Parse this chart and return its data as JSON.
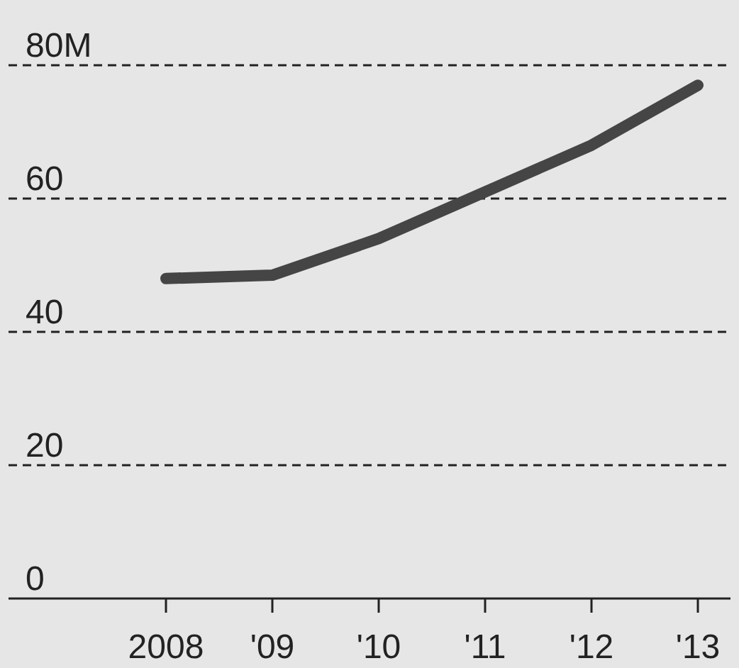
{
  "chart_data": {
    "type": "line",
    "categories": [
      "2008",
      "'09",
      "'10",
      "'11",
      "'12",
      "'13"
    ],
    "series": [
      {
        "color": "#454545",
        "values": [
          48,
          48.5,
          54,
          61,
          68,
          77
        ]
      }
    ],
    "ylim": [
      0,
      80
    ],
    "yticks": [
      0,
      20,
      40,
      60,
      {
        "value": 80,
        "label": "80M"
      }
    ],
    "grid": "y",
    "line_style": "solid",
    "marker": "none"
  }
}
